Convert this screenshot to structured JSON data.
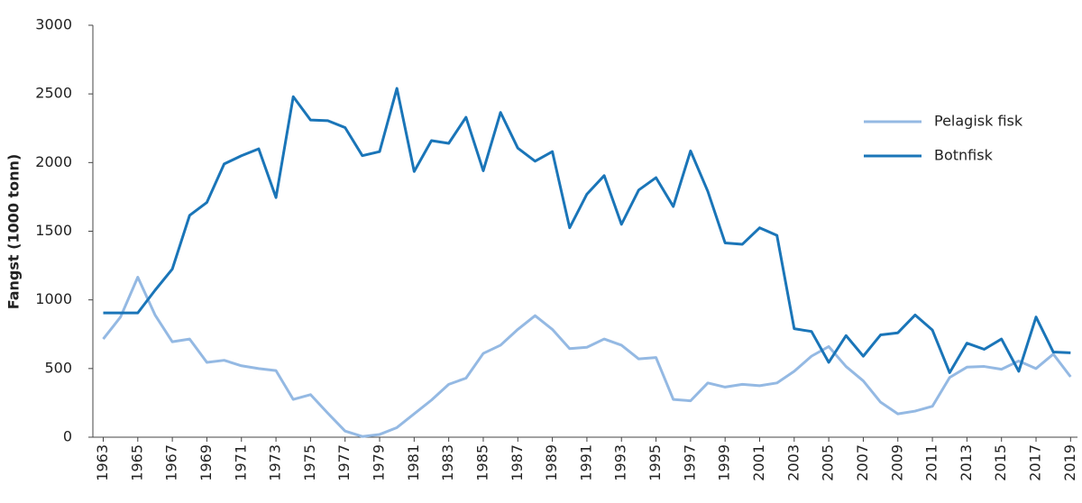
{
  "chart_data": {
    "type": "line",
    "y_label": "Fangst (1000 tonn)",
    "x": [
      1963,
      1964,
      1965,
      1966,
      1967,
      1968,
      1969,
      1970,
      1971,
      1972,
      1973,
      1974,
      1975,
      1976,
      1977,
      1978,
      1979,
      1980,
      1981,
      1982,
      1983,
      1984,
      1985,
      1986,
      1987,
      1988,
      1989,
      1990,
      1991,
      1992,
      1993,
      1994,
      1995,
      1996,
      1997,
      1998,
      1999,
      2000,
      2001,
      2002,
      2003,
      2004,
      2005,
      2006,
      2007,
      2008,
      2009,
      2010,
      2011,
      2012,
      2013,
      2014,
      2015,
      2016,
      2017,
      2018,
      2019
    ],
    "series": [
      {
        "name": "Pelagisk fisk",
        "color": "#94b9e3",
        "values": [
          715,
          875,
          1165,
          890,
          695,
          715,
          545,
          560,
          520,
          500,
          485,
          275,
          310,
          175,
          45,
          5,
          20,
          70,
          170,
          270,
          385,
          430,
          610,
          670,
          785,
          885,
          785,
          645,
          655,
          715,
          670,
          570,
          580,
          275,
          265,
          395,
          365,
          385,
          375,
          395,
          480,
          590,
          660,
          515,
          410,
          255,
          170,
          190,
          225,
          435,
          510,
          515,
          495,
          555,
          500,
          605,
          440
        ]
      },
      {
        "name": "Botnfisk",
        "color": "#1a75b8",
        "values": [
          905,
          905,
          905,
          1070,
          1225,
          1615,
          1710,
          1990,
          2050,
          2100,
          1745,
          2480,
          2310,
          2305,
          2255,
          2050,
          2080,
          2540,
          1935,
          2160,
          2140,
          2330,
          1940,
          2365,
          2105,
          2010,
          2080,
          1525,
          1770,
          1905,
          1550,
          1800,
          1890,
          1680,
          2085,
          1790,
          1415,
          1405,
          1525,
          1470,
          790,
          770,
          545,
          740,
          590,
          745,
          760,
          890,
          780,
          470,
          685,
          640,
          715,
          480,
          875,
          620,
          615
        ]
      }
    ],
    "xlim": [
      1962.4,
      2019.4
    ],
    "xticks": [
      1963,
      1965,
      1967,
      1969,
      1971,
      1973,
      1975,
      1977,
      1979,
      1981,
      1983,
      1985,
      1987,
      1989,
      1991,
      1993,
      1995,
      1997,
      1999,
      2001,
      2003,
      2005,
      2007,
      2009,
      2011,
      2013,
      2015,
      2017,
      2019
    ],
    "ylim": [
      0,
      3000
    ],
    "yticks": [
      0,
      500,
      1000,
      1500,
      2000,
      2500,
      3000
    ],
    "grid": false,
    "legend": "right"
  }
}
